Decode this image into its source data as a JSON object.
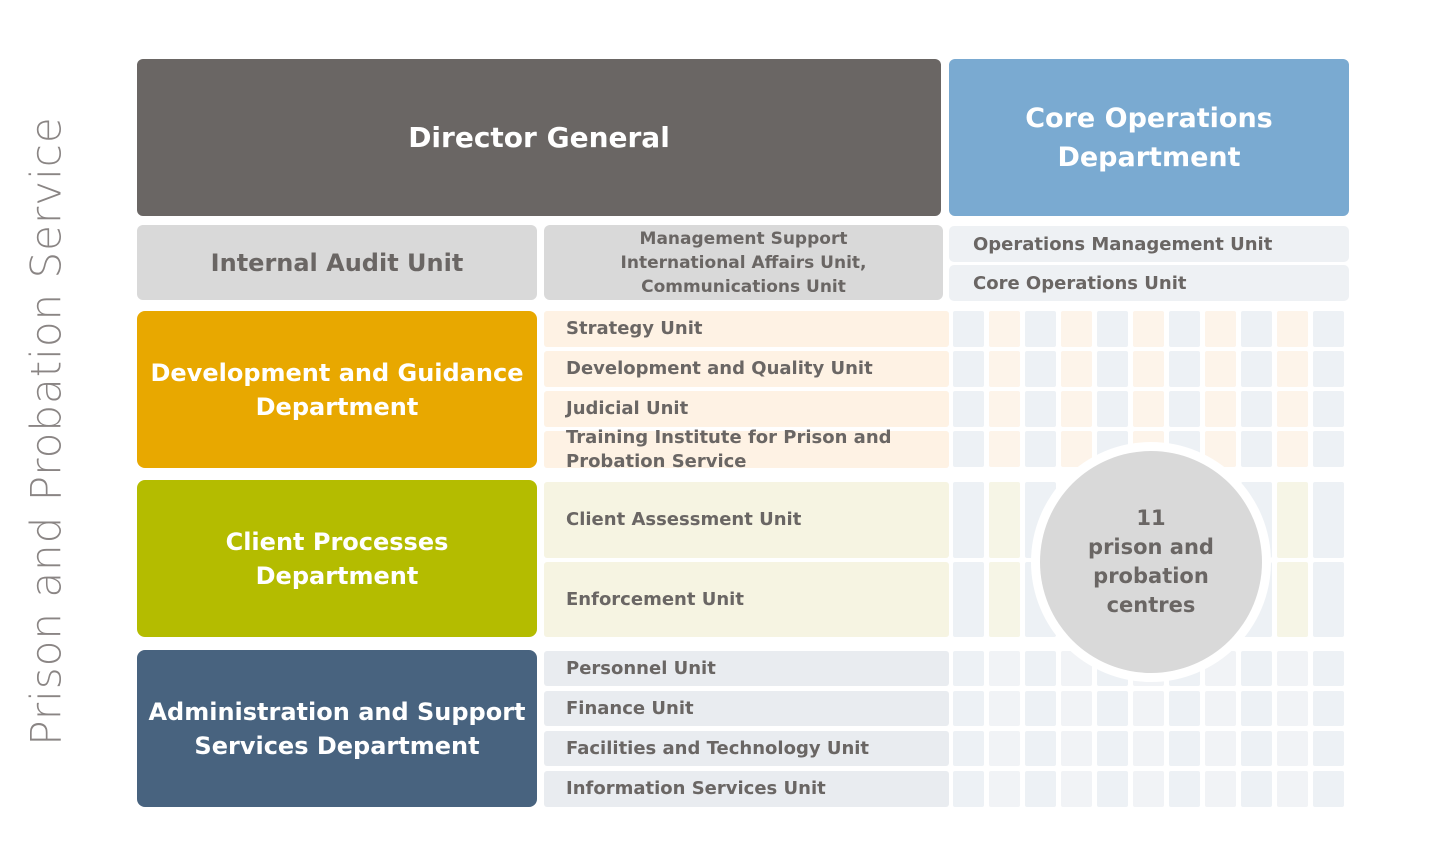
{
  "side_title": "Prison and Probation Service",
  "director_general": "Director General",
  "core_operations": {
    "line1": "Core Operations",
    "line2": "Department"
  },
  "internal_audit": "Internal Audit Unit",
  "management_support": {
    "line1": "Management Support",
    "line2": "International Affairs Unit,",
    "line3": "Communications Unit"
  },
  "operations_units": [
    "Operations Management Unit",
    "Core Operations Unit"
  ],
  "departments": {
    "development": {
      "line1": "Development and Guidance",
      "line2": "Department",
      "color": "#e8a800"
    },
    "client": {
      "line1": "Client Processes",
      "line2": "Department",
      "color": "#b4bc00"
    },
    "administration": {
      "line1": "Administration and Support",
      "line2": "Services Department",
      "color": "#48637f"
    }
  },
  "development_units": [
    "Strategy Unit",
    "Development and Quality Unit",
    "Judicial Unit",
    "Training Institute for Prison and",
    "Probation Service"
  ],
  "client_units": [
    "Client Assessment Unit",
    "Enforcement Unit"
  ],
  "administration_units": [
    "Personnel Unit",
    "Finance Unit",
    "Facilities and Technology Unit",
    "Information Services Unit"
  ],
  "centres": {
    "count": "11",
    "line2": "prison and",
    "line3": "probation",
    "line4": "centres"
  },
  "colors": {
    "director": "#6a6664",
    "core": "#7aaad1",
    "grey_box": "#d9d9d9",
    "text_grey": "#6a6664"
  }
}
